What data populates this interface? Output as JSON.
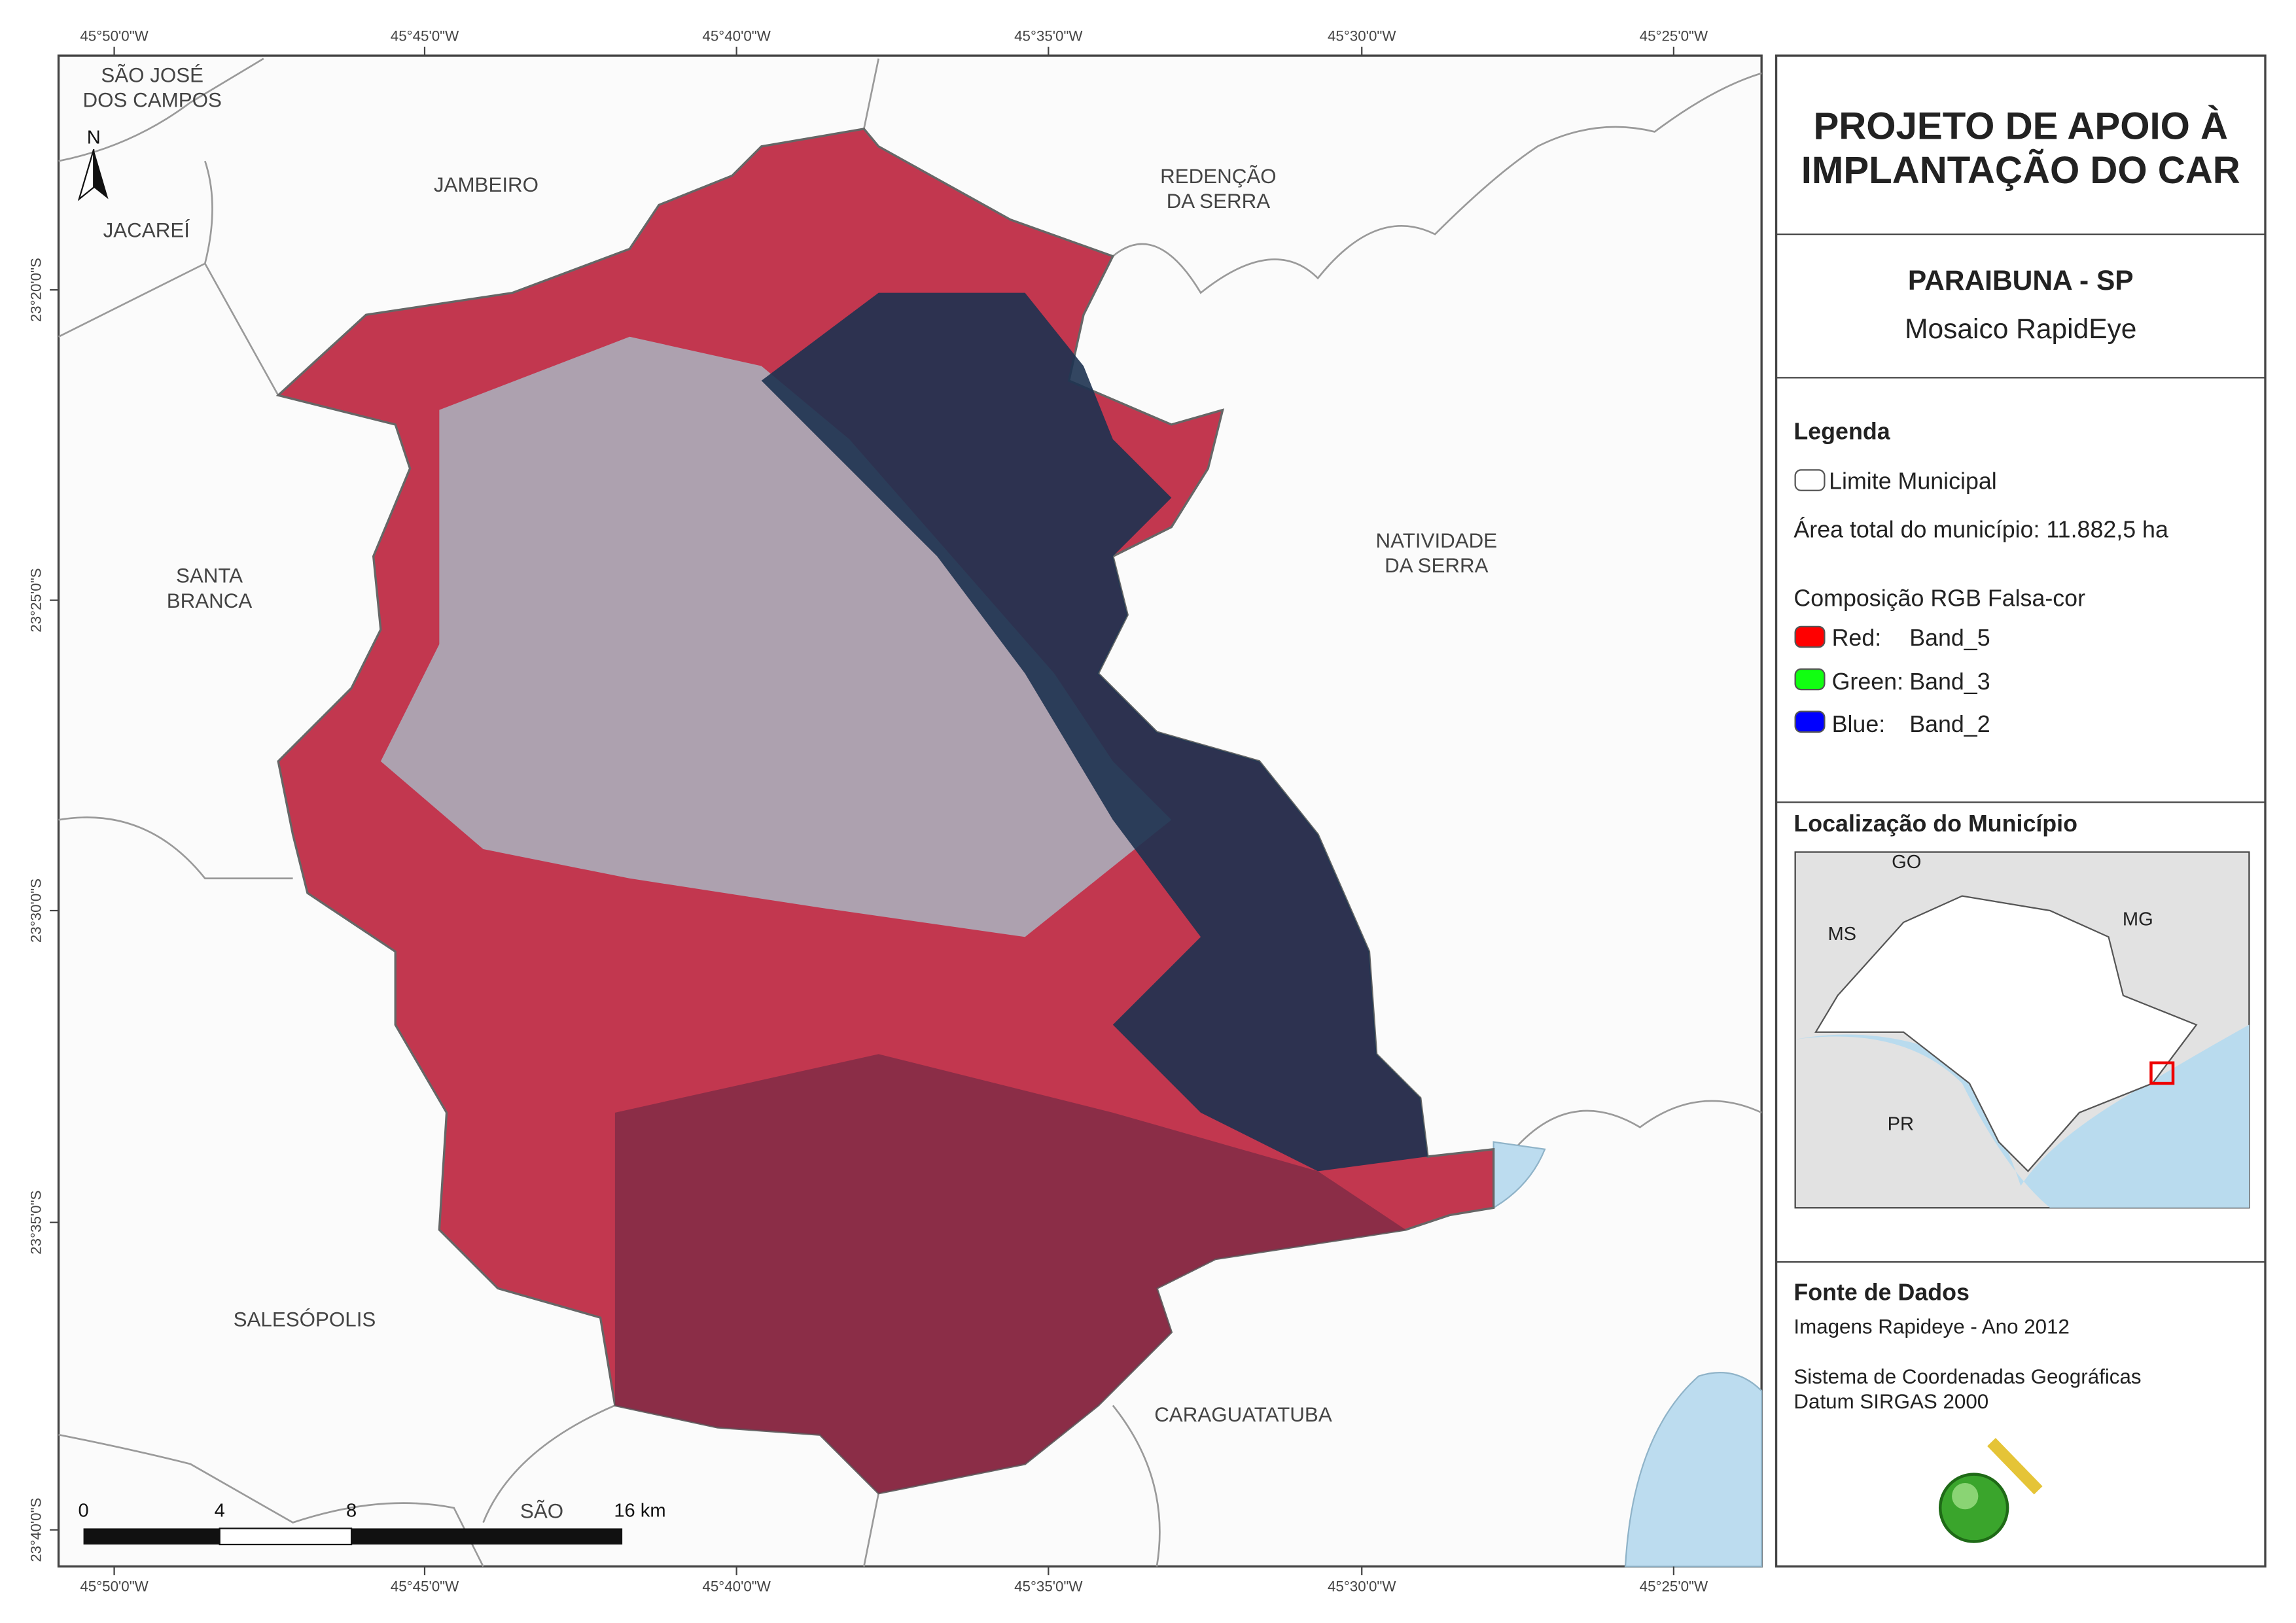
{
  "coordinates": {
    "top": [
      "45°50'0\"W",
      "45°45'0\"W",
      "45°40'0\"W",
      "45°35'0\"W",
      "45°30'0\"W",
      "45°25'0\"W"
    ],
    "bottom": [
      "45°50'0\"W",
      "45°45'0\"W",
      "45°40'0\"W",
      "45°35'0\"W",
      "45°30'0\"W",
      "45°25'0\"W"
    ],
    "left": [
      "23°20'0\"S",
      "23°25'0\"S",
      "23°30'0\"S",
      "23°35'0\"S",
      "23°40'0\"S"
    ]
  },
  "places": [
    {
      "lines": [
        "SÃO JOSÉ",
        "DOS CAMPOS"
      ]
    },
    {
      "lines": [
        "JAMBEIRO"
      ]
    },
    {
      "lines": [
        "JACAREÍ"
      ]
    },
    {
      "lines": [
        "REDENÇÃO",
        "DA SERRA"
      ]
    },
    {
      "lines": [
        "NATIVIDADE",
        "DA SERRA"
      ]
    },
    {
      "lines": [
        "SANTA",
        "BRANCA"
      ]
    },
    {
      "lines": [
        "SALESÓPOLIS"
      ]
    },
    {
      "lines": [
        "CARAGUATATUBA"
      ]
    },
    {
      "lines": [
        "SÃO"
      ]
    }
  ],
  "north": "N",
  "scale_bar": {
    "labels": [
      "0",
      "4",
      "8",
      "16 km"
    ]
  },
  "panel": {
    "title": [
      "PROJETO DE APOIO À",
      "IMPLANTAÇÃO DO CAR"
    ],
    "municipality": "PARAIBUNA - SP",
    "subtitle": "Mosaico RapidEye",
    "legend": {
      "heading": "Legenda",
      "boundary": "Limite Municipal",
      "area": "Área total do município: 11.882,5 ha",
      "composition": "Composição RGB Falsa-cor",
      "bands": [
        {
          "channel": "Red:",
          "band": "Band_5"
        },
        {
          "channel": "Green:",
          "band": "Band_3"
        },
        {
          "channel": "Blue:",
          "band": "Band_2"
        }
      ]
    },
    "location": {
      "heading": "Localização do Município",
      "states": [
        "GO",
        "MS",
        "MG",
        "PR"
      ]
    },
    "sources": {
      "heading": "Fonte de Dados",
      "lines": [
        "Imagens Rapideye - Ano 2012",
        "Sistema de Coordenadas Geográficas",
        "Datum SIRGAS 2000"
      ]
    },
    "logo": "fbds"
  }
}
